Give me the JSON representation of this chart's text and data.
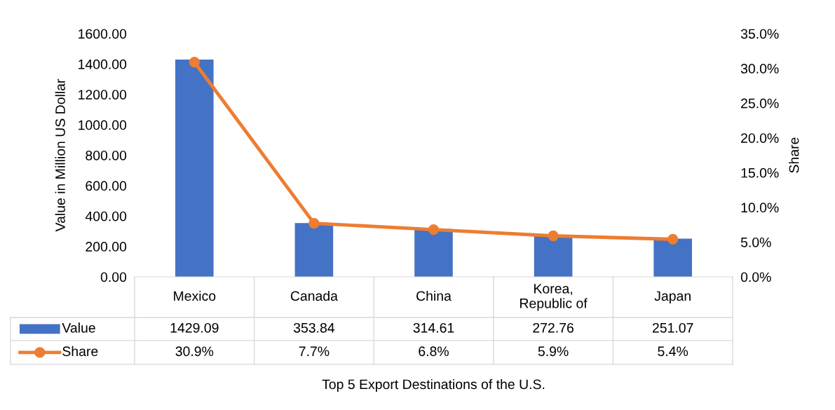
{
  "chart_data": {
    "type": "bar",
    "title": "Top 5 Export Destinations of the U.S.",
    "ylabel": "Value in Million US Dollar",
    "y2label": "Share",
    "categories": [
      "Mexico",
      "Canada",
      "China",
      "Korea,\nRepublic of",
      "Japan"
    ],
    "series": [
      {
        "name": "Value",
        "color": "#4472c4",
        "values": [
          1429.09,
          353.84,
          314.61,
          272.76,
          251.07
        ],
        "value_labels": [
          "1429.09",
          "353.84",
          "314.61",
          "272.76",
          "251.07"
        ]
      },
      {
        "name": "Share",
        "type": "line",
        "axis": "y2",
        "color": "#ed7d31",
        "marker": "circle",
        "values": [
          30.9,
          7.7,
          6.8,
          5.9,
          5.4
        ],
        "value_labels": [
          "30.9%",
          "7.7%",
          "6.8%",
          "5.9%",
          "5.4%"
        ]
      }
    ],
    "ylim": [
      0,
      1600
    ],
    "yticks": [
      {
        "value": 0,
        "label": "0.00"
      },
      {
        "value": 200,
        "label": "200.00"
      },
      {
        "value": 400,
        "label": "400.00"
      },
      {
        "value": 600,
        "label": "600.00"
      },
      {
        "value": 800,
        "label": "800.00"
      },
      {
        "value": 1000,
        "label": "1000.00"
      },
      {
        "value": 1200,
        "label": "1200.00"
      },
      {
        "value": 1400,
        "label": "1400.00"
      },
      {
        "value": 1600,
        "label": "1600.00"
      }
    ],
    "y2lim": [
      0,
      35
    ],
    "y2ticks": [
      {
        "value": 0,
        "label": "0.0%"
      },
      {
        "value": 5,
        "label": "5.0%"
      },
      {
        "value": 10,
        "label": "10.0%"
      },
      {
        "value": 15,
        "label": "15.0%"
      },
      {
        "value": 20,
        "label": "20.0%"
      },
      {
        "value": 25,
        "label": "25.0%"
      },
      {
        "value": 30,
        "label": "30.0%"
      },
      {
        "value": 35,
        "label": "35.0%"
      }
    ],
    "grid": false,
    "legend": "bottom"
  }
}
